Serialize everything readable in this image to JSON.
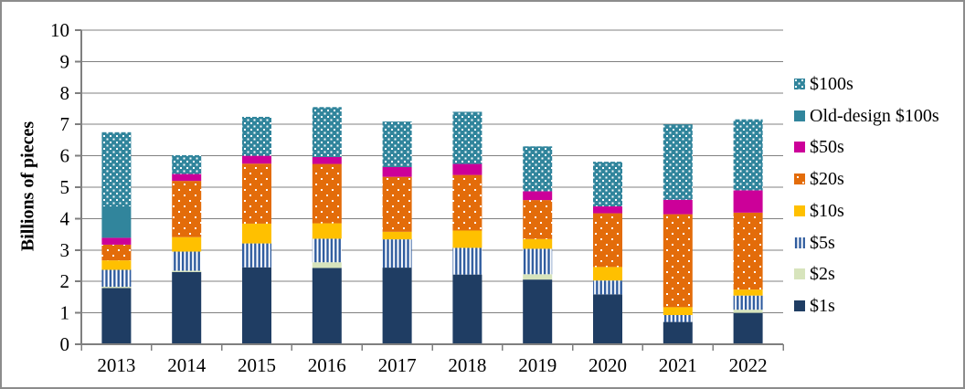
{
  "chart_data": {
    "type": "bar",
    "stacked": true,
    "title": "",
    "ylabel": "Billions of pieces",
    "xlabel": "",
    "ylim": [
      0,
      10
    ],
    "ytick_interval": 1,
    "grid": "horizontal",
    "legend_position": "right",
    "categories": [
      "2013",
      "2014",
      "2015",
      "2016",
      "2017",
      "2018",
      "2019",
      "2020",
      "2021",
      "2022"
    ],
    "series": [
      {
        "name": "$1s",
        "color": "#1F3D63",
        "pattern": "solid",
        "values": [
          1.79,
          2.3,
          2.45,
          2.43,
          2.44,
          2.22,
          2.06,
          1.59,
          0.71,
          1.0
        ]
      },
      {
        "name": "$2s",
        "color": "#D7E4BC",
        "pattern": "solid",
        "values": [
          0.04,
          0.04,
          0.0,
          0.18,
          0.0,
          0.0,
          0.17,
          0.0,
          0.0,
          0.1
        ]
      },
      {
        "name": "$5s",
        "color": "#2E5B9E",
        "pattern": "vstripes",
        "values": [
          0.54,
          0.61,
          0.76,
          0.75,
          0.9,
          0.85,
          0.81,
          0.44,
          0.22,
          0.45
        ]
      },
      {
        "name": "$10s",
        "color": "#FFC000",
        "pattern": "solid",
        "values": [
          0.3,
          0.46,
          0.63,
          0.49,
          0.24,
          0.55,
          0.31,
          0.43,
          0.25,
          0.19
        ]
      },
      {
        "name": "$20s",
        "color": "#E36C0A",
        "pattern": "dots",
        "values": [
          0.5,
          1.79,
          1.91,
          1.89,
          1.75,
          1.77,
          1.24,
          1.71,
          2.96,
          2.45
        ]
      },
      {
        "name": "$50s",
        "color": "#CC0099",
        "pattern": "solid",
        "values": [
          0.22,
          0.22,
          0.25,
          0.22,
          0.31,
          0.35,
          0.28,
          0.22,
          0.46,
          0.71
        ]
      },
      {
        "name": "Old-design $100s",
        "color": "#31859C",
        "pattern": "solid",
        "values": [
          1.0,
          0,
          0,
          0,
          0,
          0,
          0,
          0,
          0,
          0
        ]
      },
      {
        "name": "$100s",
        "color": "#31859C",
        "pattern": "checker",
        "values": [
          2.36,
          0.6,
          1.24,
          1.59,
          1.45,
          1.66,
          1.43,
          1.42,
          2.4,
          2.26
        ]
      }
    ],
    "legend": [
      "$100s",
      "Old-design $100s",
      "$50s",
      "$20s",
      "$10s",
      "$5s",
      "$2s",
      "$1s"
    ],
    "colors": {
      "grid": "#808080",
      "axis": "#7F7F7F",
      "frame_border": "#8C8C8C",
      "text": "#000000"
    }
  }
}
